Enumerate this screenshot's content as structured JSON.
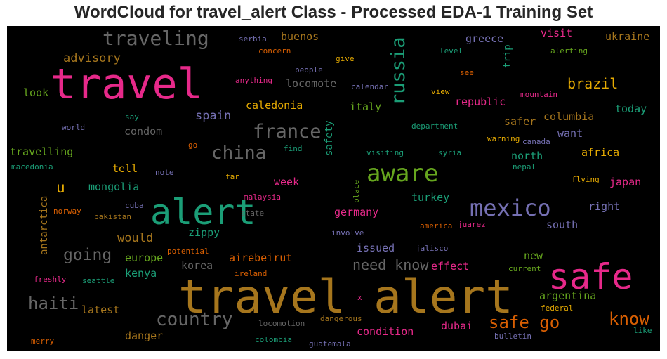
{
  "title": "WordCloud for travel_alert Class - Processed EDA-1 Training Set",
  "colors": {
    "background": "#000000",
    "palette": [
      "#e7298a",
      "#1b9e77",
      "#d95f02",
      "#7570b3",
      "#66a61e",
      "#e6ab02",
      "#a6761d",
      "#666666"
    ]
  },
  "words": [
    "travel alert",
    "travel",
    "alert",
    "safe",
    "aware",
    "mexico",
    "traveling",
    "russia",
    "france",
    "china",
    "country",
    "safe go",
    "know",
    "haiti",
    "going",
    "need know",
    "brazil",
    "u",
    "advisory",
    "buenos",
    "greece",
    "visit",
    "ukraine",
    "trip",
    "look",
    "locomote",
    "republic",
    "caledonia",
    "italy",
    "spain",
    "condom",
    "safety",
    "columbia",
    "today",
    "safer",
    "want",
    "travelling",
    "north",
    "africa",
    "tell",
    "japan",
    "mongolia",
    "week",
    "turkey",
    "right",
    "antarctica",
    "germany",
    "south",
    "would",
    "zippy",
    "europe",
    "airebeirut",
    "issued",
    "new",
    "kenya",
    "korea",
    "effect",
    "argentina",
    "latest",
    "danger",
    "dubai",
    "condition",
    "concern",
    "give",
    "serbia",
    "level",
    "alerting",
    "people",
    "see",
    "anything",
    "calendar",
    "view",
    "mountain",
    "say",
    "world",
    "department",
    "warning",
    "canada",
    "go",
    "find",
    "visiting",
    "syria",
    "macedonia",
    "note",
    "nepal",
    "far",
    "flying",
    "place",
    "malaysia",
    "cuba",
    "norway",
    "pakistan",
    "state",
    "involve",
    "america",
    "juarez",
    "potential",
    "jalisco",
    "ireland",
    "current",
    "freshly",
    "seattle",
    "x",
    "federal",
    "dangerous",
    "locomotion",
    "like",
    "merry",
    "colombia",
    "guatemala",
    "bulletin"
  ]
}
